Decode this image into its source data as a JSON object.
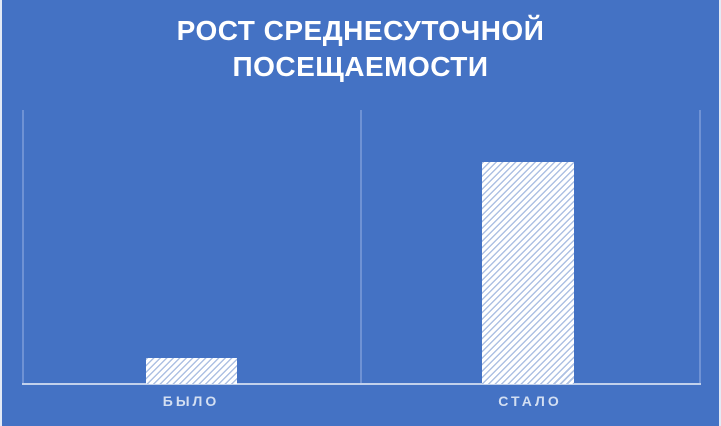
{
  "colors": {
    "background": "#4472c4",
    "gridline": "#6f92d4",
    "axis": "#c2d1ec",
    "label": "#d3dff2",
    "title": "#ffffff",
    "bar_stripe": "#aec1e3",
    "bar_fill": "#ffffff"
  },
  "chart_data": {
    "type": "bar",
    "title": "РОСТ СРЕДНЕСУТОЧНОЙ ПОСЕЩАЕМОСТИ",
    "categories": [
      "БЫЛО",
      "СТАЛО"
    ],
    "values": [
      9.5,
      81
    ],
    "value_units": "relative units (axis unlabeled, values estimated from bar heights)",
    "xlabel": "",
    "ylabel": "",
    "ylim": [
      0,
      100
    ],
    "grid": "vertical category-boundary gridlines only, no horizontal gridlines, no y-axis ticks",
    "legend": "none",
    "bar_style": "white fill with thin light-blue diagonal hatch stripes (/ direction)",
    "background": "solid medium blue"
  }
}
